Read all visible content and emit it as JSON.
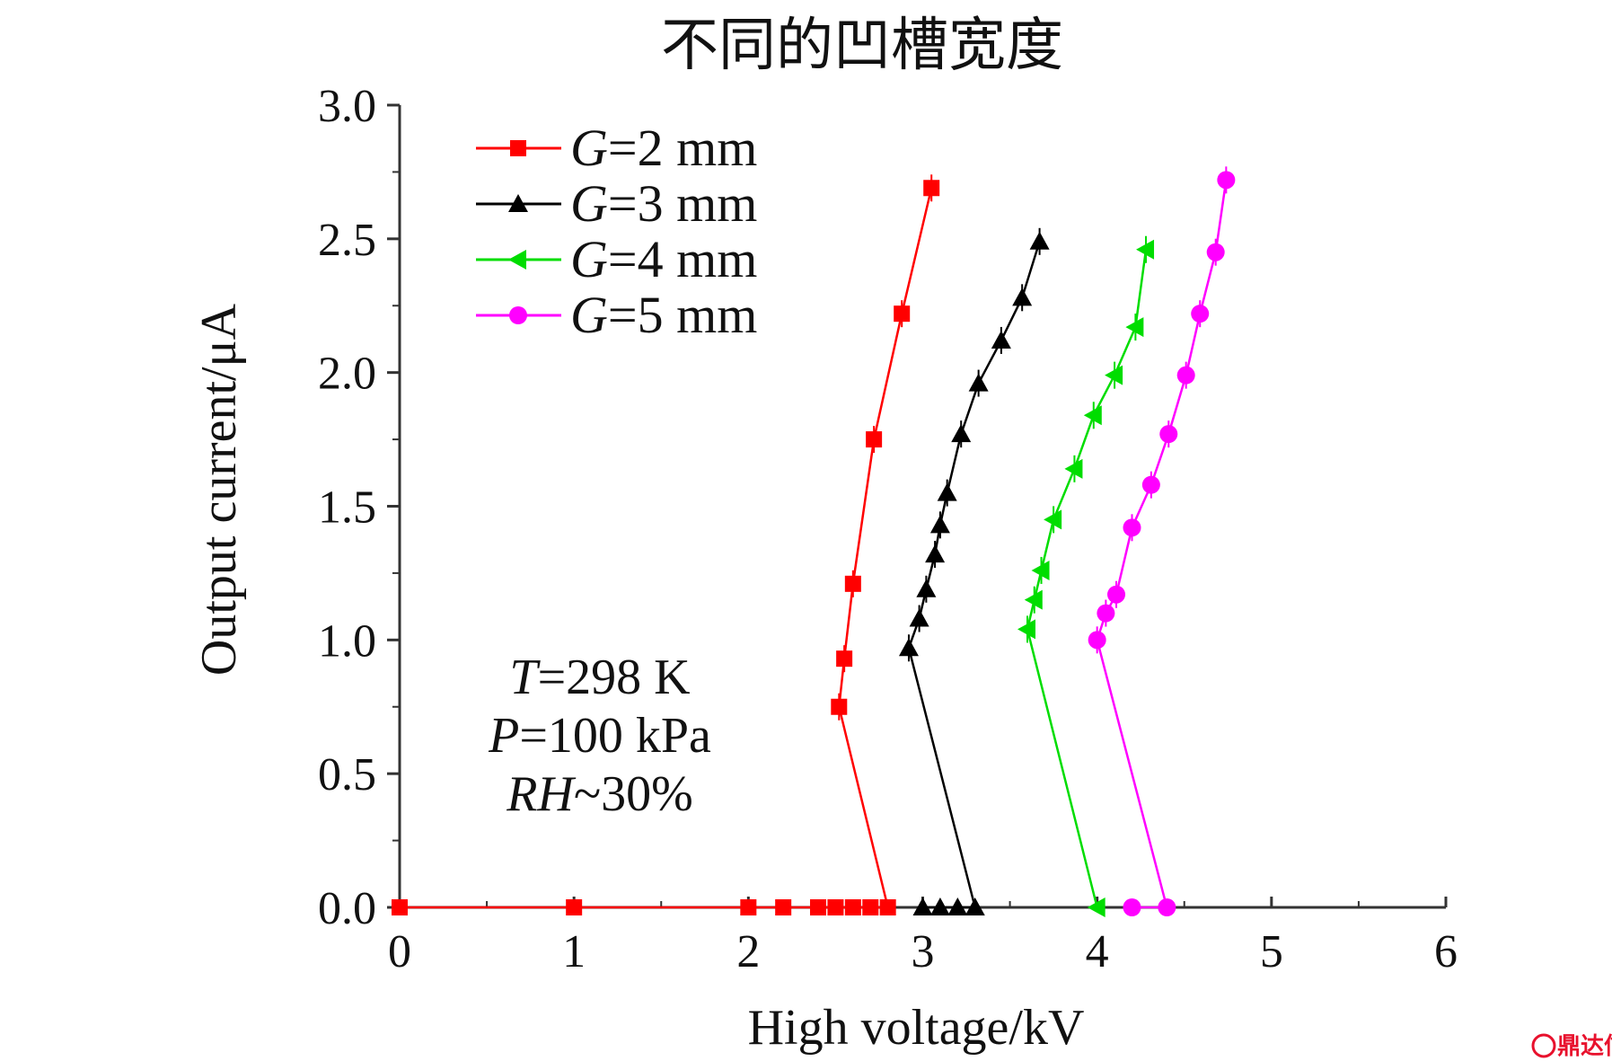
{
  "chart_data": {
    "type": "line",
    "title": "不同的凹槽宽度",
    "xlabel": "High voltage/kV",
    "ylabel": "Output current/μA",
    "xlim": [
      0,
      6
    ],
    "ylim": [
      0,
      3.0
    ],
    "xticks": [
      "0",
      "1",
      "2",
      "3",
      "4",
      "5",
      "6"
    ],
    "yticks": [
      "0.0",
      "0.5",
      "1.0",
      "1.5",
      "2.0",
      "2.5",
      "3.0"
    ],
    "grid": false,
    "legend_position": "top-left",
    "series": [
      {
        "name": "G=2 mm",
        "legend_var": "G",
        "legend_value": "=2 mm",
        "color": "#ff0000",
        "marker": "square",
        "points": [
          [
            0,
            0.0
          ],
          [
            1,
            0.0
          ],
          [
            2,
            0.0
          ],
          [
            2.2,
            0.0
          ],
          [
            2.4,
            0.0
          ],
          [
            2.5,
            0.0
          ],
          [
            2.6,
            0.0
          ],
          [
            2.7,
            0.0
          ],
          [
            2.8,
            0.0
          ],
          [
            2.52,
            0.75
          ],
          [
            2.55,
            0.93
          ],
          [
            2.6,
            1.21
          ],
          [
            2.72,
            1.75
          ],
          [
            2.88,
            2.22
          ],
          [
            3.05,
            2.69
          ]
        ]
      },
      {
        "name": "G=3 mm",
        "legend_var": "G",
        "legend_value": "=3 mm",
        "color": "#000000",
        "marker": "triangle-up",
        "points": [
          [
            3.0,
            0.0
          ],
          [
            3.1,
            0.0
          ],
          [
            3.2,
            0.0
          ],
          [
            3.3,
            0.0
          ],
          [
            2.92,
            0.97
          ],
          [
            2.98,
            1.08
          ],
          [
            3.02,
            1.19
          ],
          [
            3.07,
            1.32
          ],
          [
            3.1,
            1.43
          ],
          [
            3.14,
            1.55
          ],
          [
            3.22,
            1.77
          ],
          [
            3.32,
            1.96
          ],
          [
            3.45,
            2.12
          ],
          [
            3.57,
            2.28
          ],
          [
            3.67,
            2.49
          ]
        ]
      },
      {
        "name": "G=4 mm",
        "legend_var": "G",
        "legend_value": "=4 mm",
        "color": "#00dd00",
        "marker": "triangle-left",
        "points": [
          [
            4.0,
            0.0
          ],
          [
            3.6,
            1.04
          ],
          [
            3.64,
            1.15
          ],
          [
            3.68,
            1.26
          ],
          [
            3.75,
            1.45
          ],
          [
            3.87,
            1.64
          ],
          [
            3.98,
            1.84
          ],
          [
            4.1,
            1.99
          ],
          [
            4.22,
            2.17
          ],
          [
            4.28,
            2.46
          ]
        ]
      },
      {
        "name": "G=5 mm",
        "legend_var": "G",
        "legend_value": "=5 mm",
        "color": "#ff00ff",
        "marker": "circle",
        "points": [
          [
            4.2,
            0.0
          ],
          [
            4.4,
            0.0
          ],
          [
            4.0,
            1.0
          ],
          [
            4.05,
            1.1
          ],
          [
            4.11,
            1.17
          ],
          [
            4.2,
            1.42
          ],
          [
            4.31,
            1.58
          ],
          [
            4.41,
            1.77
          ],
          [
            4.51,
            1.99
          ],
          [
            4.59,
            2.22
          ],
          [
            4.68,
            2.45
          ],
          [
            4.74,
            2.72
          ]
        ]
      }
    ],
    "annotations": [
      {
        "var": "T",
        "value": "=298 K"
      },
      {
        "var": "P",
        "value": "=100 kPa"
      },
      {
        "var": "RH",
        "value": "~30%"
      }
    ]
  },
  "watermark": {
    "text": "鼎达信",
    "color": "#e8112d"
  }
}
